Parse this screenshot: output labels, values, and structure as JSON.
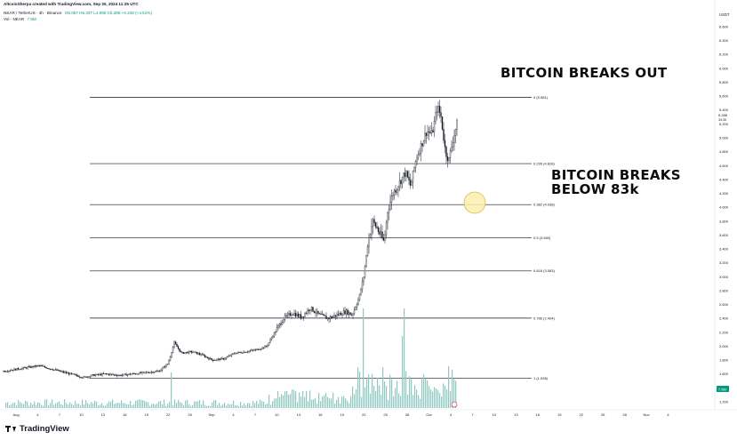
{
  "header": {
    "attribution": "AltcoinSherpa created with TradingView.com, Sep 30, 2024 11:25 UTC",
    "symbol": "NEAR / TetherUS · 4h · Binance",
    "ohlc": "O5.057 H5.337 L4.995 C5.286 +0.228 (+4.51%)",
    "volume_label": "Vol · NEAR",
    "volume_value": "7.5M"
  },
  "annotations": {
    "breaks_out": "BITCOIN BREAKS OUT",
    "breaks_below": "BITCOIN BREAKS BELOW 83k"
  },
  "currency": "USDT",
  "footer": {
    "brand": "TradingView"
  },
  "colors": {
    "candle": "#131722",
    "fib_line": "#131722",
    "volume": "#8fc9c1",
    "circle_fill": "#fcefaf",
    "circle_stroke": "#d9b84a",
    "price_tag": "#089981"
  },
  "chart_data": {
    "type": "candlestick",
    "timeframe": "4h",
    "y_axis": {
      "scale": "linear",
      "range": [
        1.0,
        6.8
      ],
      "ticks": [
        6.6,
        6.4,
        6.2,
        6.0,
        5.8,
        5.6,
        5.4,
        5.2,
        5.0,
        4.8,
        4.6,
        4.4,
        4.2,
        4.0,
        3.8,
        3.6,
        3.4,
        3.2,
        3.0,
        2.8,
        2.6,
        2.4,
        2.2,
        2.0,
        1.8,
        1.6,
        1.4,
        1.2
      ],
      "tick_labels": [
        "6.600",
        "6.400",
        "6.200",
        "6.000",
        "5.800",
        "5.600",
        "5.400",
        "5.200",
        "5.000",
        "4.800",
        "4.600",
        "4.400",
        "4.200",
        "4.000",
        "3.800",
        "3.600",
        "3.400",
        "3.200",
        "3.000",
        "2.800",
        "2.600",
        "2.400",
        "2.200",
        "2.000",
        "1.800",
        "1.600",
        "1.400",
        "1.200"
      ],
      "price_label": "5.286",
      "countdown": "34:35",
      "volume_tag": "7.5M"
    },
    "x_axis": {
      "tick_labels": [
        "Aug",
        "4",
        "7",
        "10",
        "13",
        "16",
        "19",
        "22",
        "25",
        "Sep",
        "4",
        "7",
        "10",
        "13",
        "16",
        "19",
        "22",
        "25",
        "28",
        "Oct",
        "4",
        "7",
        "10",
        "13",
        "16",
        "19",
        "22",
        "25",
        "28",
        "Nov",
        "4"
      ]
    },
    "fib_levels": [
      {
        "ratio": "0",
        "price": 5.581,
        "label": "0 (5.581)"
      },
      {
        "ratio": "0.236",
        "price": 4.628,
        "label": "0.236 (4.628)"
      },
      {
        "ratio": "0.382",
        "price": 4.038,
        "label": "0.382 (4.038)"
      },
      {
        "ratio": "0.5",
        "price": 3.56,
        "label": "0.5 (3.560)"
      },
      {
        "ratio": "0.618",
        "price": 3.083,
        "label": "0.618 (3.083)"
      },
      {
        "ratio": "0.786",
        "price": 2.404,
        "label": "0.786 (2.404)"
      },
      {
        "ratio": "1",
        "price": 1.538,
        "label": "1 (1.538)"
      }
    ],
    "price_path": [
      {
        "t": 0,
        "p": 1.64
      },
      {
        "t": 20,
        "p": 1.68
      },
      {
        "t": 40,
        "p": 1.72
      },
      {
        "t": 60,
        "p": 1.65
      },
      {
        "t": 75,
        "p": 1.6
      },
      {
        "t": 90,
        "p": 1.55
      },
      {
        "t": 100,
        "p": 1.58
      },
      {
        "t": 115,
        "p": 1.6
      },
      {
        "t": 130,
        "p": 1.58
      },
      {
        "t": 145,
        "p": 1.6
      },
      {
        "t": 160,
        "p": 1.62
      },
      {
        "t": 175,
        "p": 1.64
      },
      {
        "t": 185,
        "p": 1.75
      },
      {
        "t": 192,
        "p": 2.05
      },
      {
        "t": 200,
        "p": 1.9
      },
      {
        "t": 212,
        "p": 1.92
      },
      {
        "t": 222,
        "p": 1.88
      },
      {
        "t": 235,
        "p": 1.8
      },
      {
        "t": 248,
        "p": 1.82
      },
      {
        "t": 260,
        "p": 1.9
      },
      {
        "t": 272,
        "p": 1.92
      },
      {
        "t": 285,
        "p": 1.95
      },
      {
        "t": 296,
        "p": 2.0
      },
      {
        "t": 305,
        "p": 2.2
      },
      {
        "t": 315,
        "p": 2.4
      },
      {
        "t": 325,
        "p": 2.48
      },
      {
        "t": 335,
        "p": 2.42
      },
      {
        "t": 345,
        "p": 2.55
      },
      {
        "t": 355,
        "p": 2.45
      },
      {
        "t": 365,
        "p": 2.4
      },
      {
        "t": 375,
        "p": 2.45
      },
      {
        "t": 385,
        "p": 2.5
      },
      {
        "t": 392,
        "p": 2.45
      },
      {
        "t": 400,
        "p": 2.7
      },
      {
        "t": 405,
        "p": 3.0
      },
      {
        "t": 410,
        "p": 3.5
      },
      {
        "t": 415,
        "p": 3.8
      },
      {
        "t": 420,
        "p": 3.7
      },
      {
        "t": 428,
        "p": 3.5
      },
      {
        "t": 432,
        "p": 3.95
      },
      {
        "t": 438,
        "p": 4.2
      },
      {
        "t": 445,
        "p": 4.35
      },
      {
        "t": 452,
        "p": 4.5
      },
      {
        "t": 458,
        "p": 4.3
      },
      {
        "t": 464,
        "p": 4.7
      },
      {
        "t": 470,
        "p": 4.9
      },
      {
        "t": 476,
        "p": 5.1
      },
      {
        "t": 482,
        "p": 5.05
      },
      {
        "t": 488,
        "p": 5.45
      },
      {
        "t": 492,
        "p": 5.3
      },
      {
        "t": 497,
        "p": 4.8
      },
      {
        "t": 501,
        "p": 4.68
      },
      {
        "t": 505,
        "p": 4.95
      },
      {
        "t": 510,
        "p": 5.2
      }
    ]
  }
}
